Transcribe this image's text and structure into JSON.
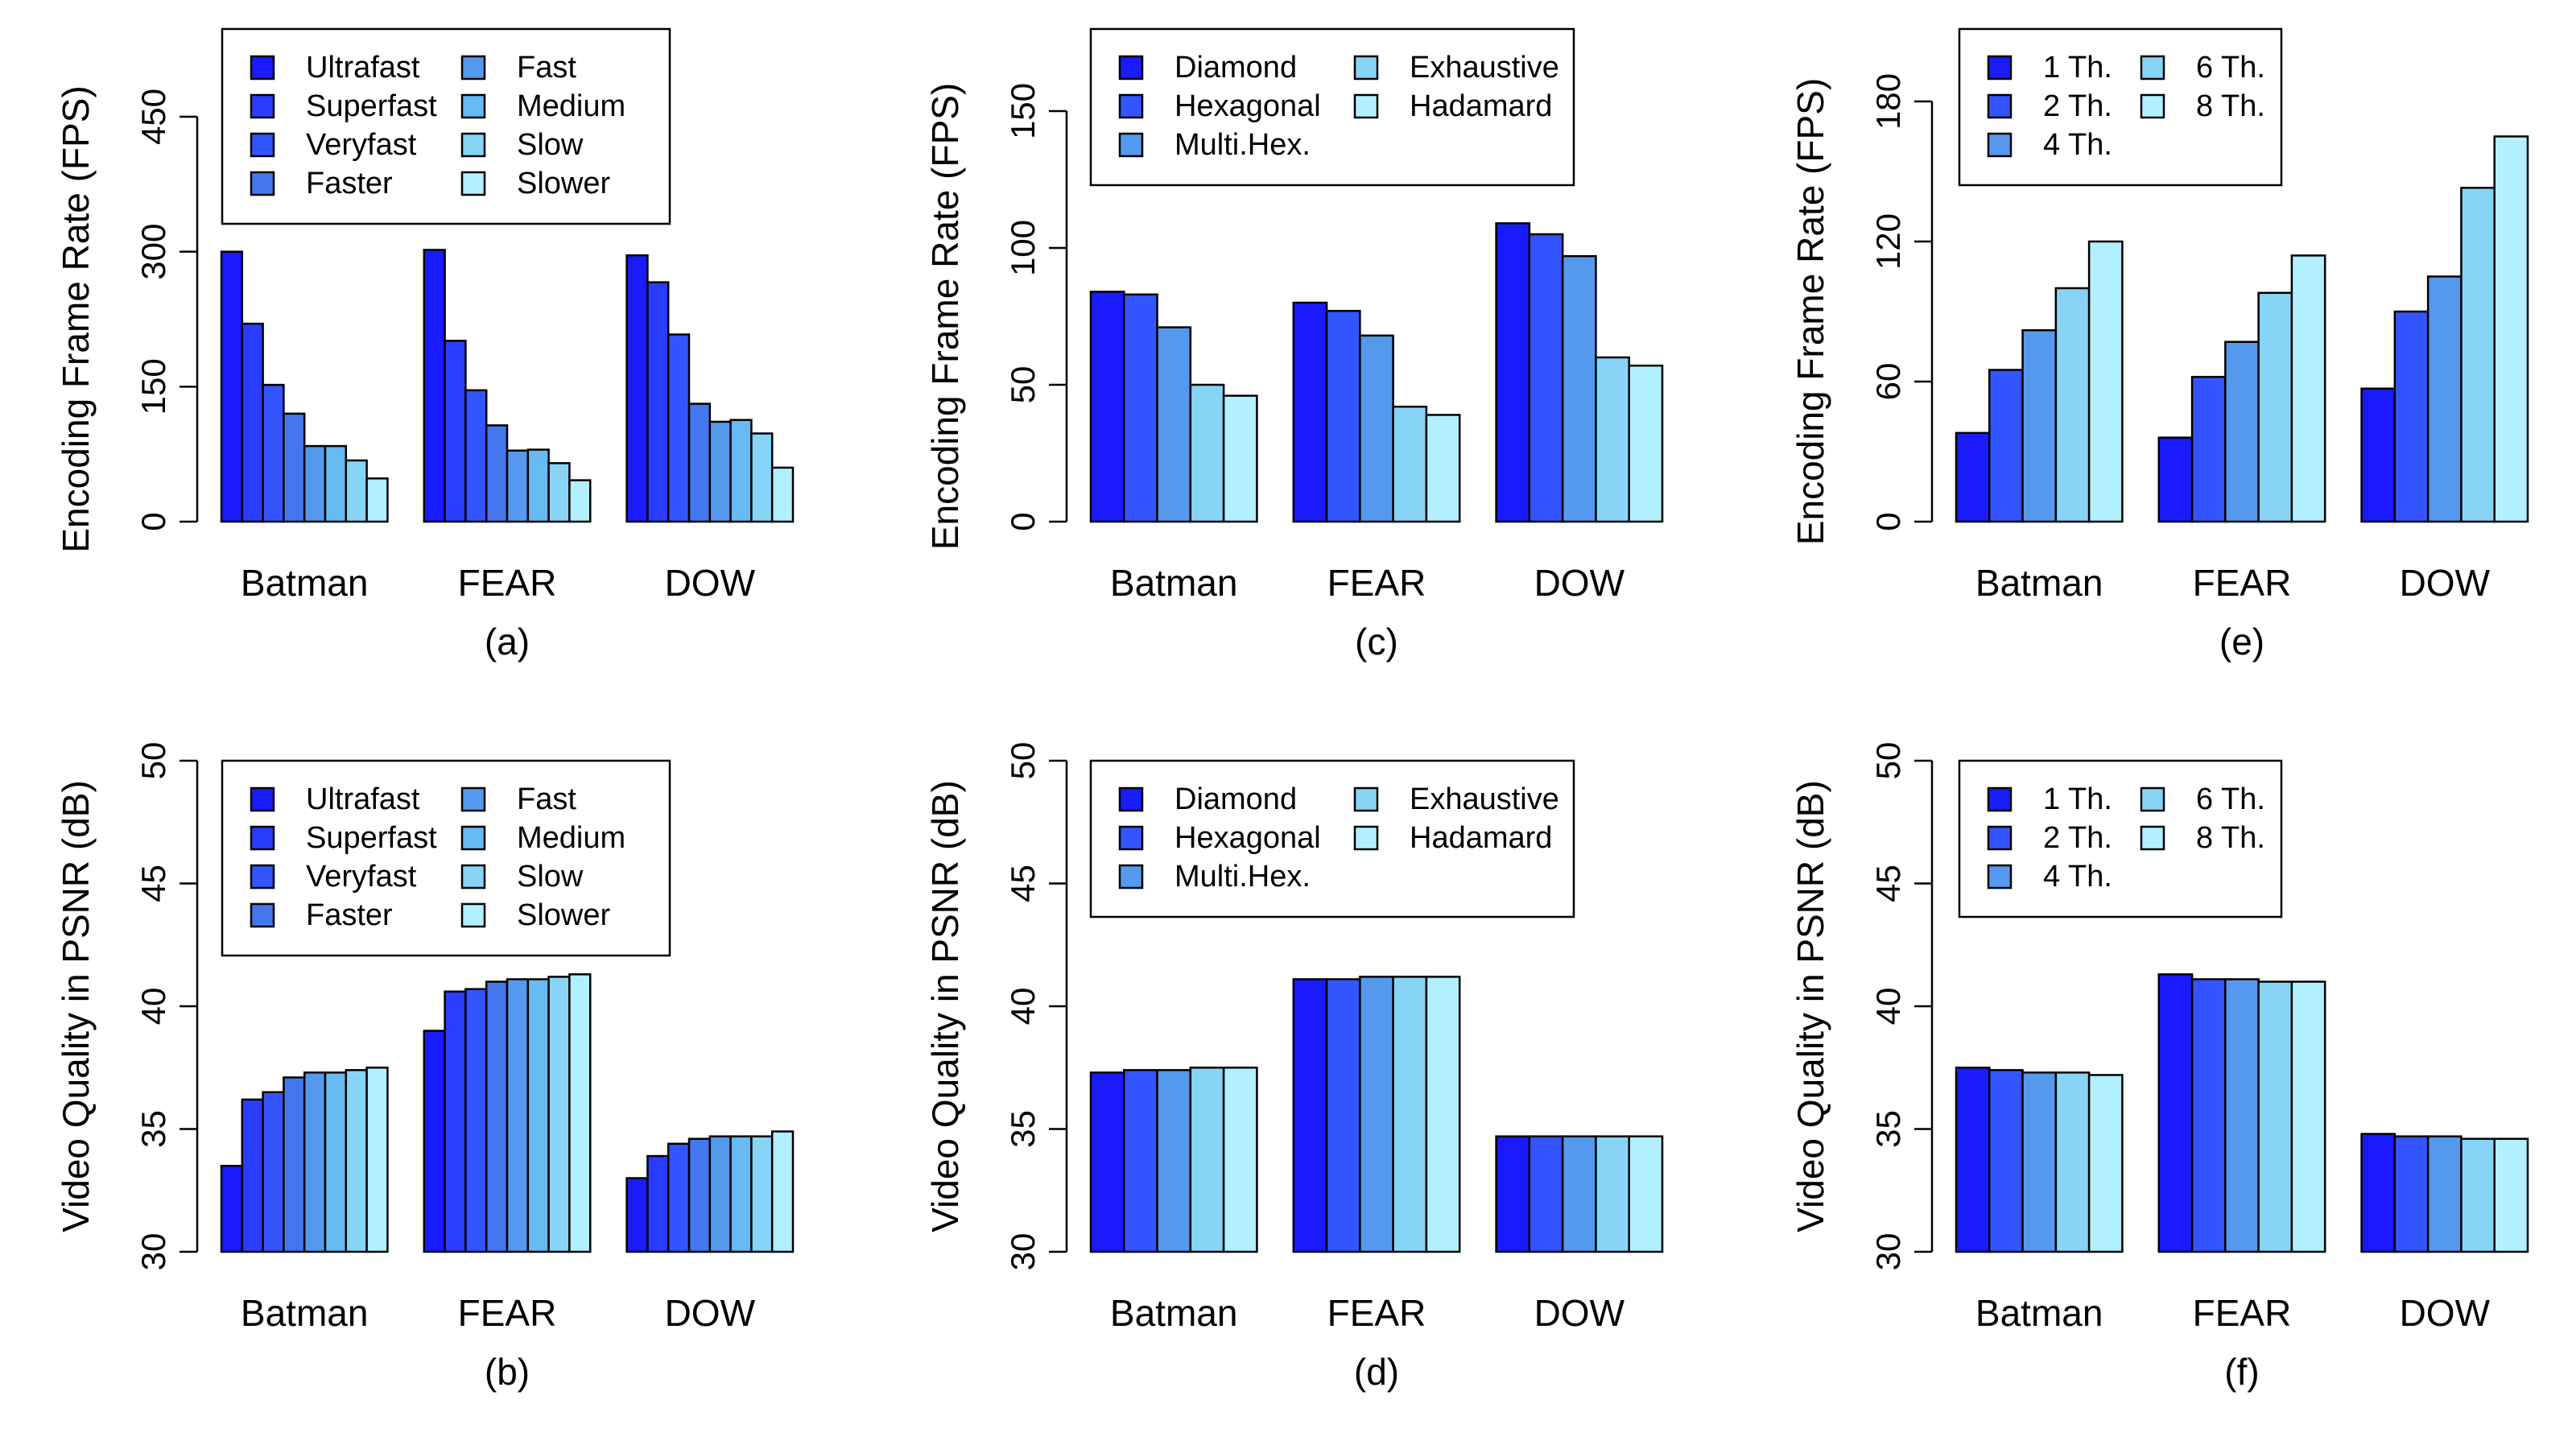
{
  "chart_data": [
    {
      "id": "a",
      "caption": "(a)",
      "type": "bar",
      "ylabel": "Encoding Frame Rate (FPS)",
      "ylim": [
        0,
        450
      ],
      "yticks": [
        "0",
        "150",
        "300",
        "450"
      ],
      "categories": [
        "Batman",
        "FEAR",
        "DOW"
      ],
      "legend_cols": 2,
      "series": [
        {
          "name": "Ultrafast",
          "color": "#1a1aff",
          "values": [
            300,
            302,
            296
          ]
        },
        {
          "name": "Superfast",
          "color": "#2a3cff",
          "values": [
            220,
            201,
            266
          ]
        },
        {
          "name": "Veryfast",
          "color": "#3355ff",
          "values": [
            152,
            146,
            208
          ]
        },
        {
          "name": "Faster",
          "color": "#4477ee",
          "values": [
            120,
            107,
            131
          ]
        },
        {
          "name": "Fast",
          "color": "#5599ee",
          "values": [
            84,
            79,
            111
          ]
        },
        {
          "name": "Medium",
          "color": "#66bbf2",
          "values": [
            84,
            80,
            113
          ]
        },
        {
          "name": "Slow",
          "color": "#88d4f7",
          "values": [
            68,
            65,
            98
          ]
        },
        {
          "name": "Slower",
          "color": "#b3f0ff",
          "values": [
            48,
            46,
            60
          ]
        }
      ]
    },
    {
      "id": "c",
      "caption": "(c)",
      "type": "bar",
      "ylabel": "Encoding Frame Rate (FPS)",
      "ylim": [
        0,
        150
      ],
      "yticks": [
        "0",
        "50",
        "100",
        "150"
      ],
      "categories": [
        "Batman",
        "FEAR",
        "DOW"
      ],
      "legend_cols": 2,
      "series": [
        {
          "name": "Diamond",
          "color": "#1a1aff",
          "values": [
            84,
            80,
            109
          ]
        },
        {
          "name": "Hexagonal",
          "color": "#3355ff",
          "values": [
            83,
            77,
            105
          ]
        },
        {
          "name": "Multi.Hex.",
          "color": "#5599ee",
          "values": [
            71,
            68,
            97
          ]
        },
        {
          "name": "Exhaustive",
          "color": "#88d4f7",
          "values": [
            50,
            42,
            60
          ]
        },
        {
          "name": "Hadamard",
          "color": "#b3f0ff",
          "values": [
            46,
            39,
            57
          ]
        }
      ]
    },
    {
      "id": "e",
      "caption": "(e)",
      "type": "bar",
      "ylabel": "Encoding Frame Rate (FPS)",
      "ylim": [
        0,
        180
      ],
      "yticks": [
        "0",
        "60",
        "120",
        "180"
      ],
      "categories": [
        "Batman",
        "FEAR",
        "DOW"
      ],
      "legend_cols": 2,
      "series": [
        {
          "name": "1 Th.",
          "color": "#1a1aff",
          "values": [
            38,
            36,
            57
          ]
        },
        {
          "name": "2 Th.",
          "color": "#3355ff",
          "values": [
            65,
            62,
            90
          ]
        },
        {
          "name": "4 Th.",
          "color": "#5599ee",
          "values": [
            82,
            77,
            105
          ]
        },
        {
          "name": "6 Th.",
          "color": "#88d4f7",
          "values": [
            100,
            98,
            143
          ]
        },
        {
          "name": "8 Th.",
          "color": "#b3f0ff",
          "values": [
            120,
            114,
            165
          ]
        }
      ]
    },
    {
      "id": "b",
      "caption": "(b)",
      "type": "bar",
      "ylabel": "Video Quality in PSNR (dB)",
      "ylim": [
        30,
        50
      ],
      "yticks": [
        "30",
        "35",
        "40",
        "45",
        "50"
      ],
      "categories": [
        "Batman",
        "FEAR",
        "DOW"
      ],
      "legend_cols": 2,
      "series": [
        {
          "name": "Ultrafast",
          "color": "#1a1aff",
          "values": [
            33.5,
            39.0,
            33.0
          ]
        },
        {
          "name": "Superfast",
          "color": "#2a3cff",
          "values": [
            36.2,
            40.6,
            33.9
          ]
        },
        {
          "name": "Veryfast",
          "color": "#3355ff",
          "values": [
            36.5,
            40.7,
            34.4
          ]
        },
        {
          "name": "Faster",
          "color": "#4477ee",
          "values": [
            37.1,
            41.0,
            34.6
          ]
        },
        {
          "name": "Fast",
          "color": "#5599ee",
          "values": [
            37.3,
            41.1,
            34.7
          ]
        },
        {
          "name": "Medium",
          "color": "#66bbf2",
          "values": [
            37.3,
            41.1,
            34.7
          ]
        },
        {
          "name": "Slow",
          "color": "#88d4f7",
          "values": [
            37.4,
            41.2,
            34.7
          ]
        },
        {
          "name": "Slower",
          "color": "#b3f0ff",
          "values": [
            37.5,
            41.3,
            34.9
          ]
        }
      ]
    },
    {
      "id": "d",
      "caption": "(d)",
      "type": "bar",
      "ylabel": "Video Quality in PSNR (dB)",
      "ylim": [
        30,
        50
      ],
      "yticks": [
        "30",
        "35",
        "40",
        "45",
        "50"
      ],
      "categories": [
        "Batman",
        "FEAR",
        "DOW"
      ],
      "legend_cols": 2,
      "series": [
        {
          "name": "Diamond",
          "color": "#1a1aff",
          "values": [
            37.3,
            41.1,
            34.7
          ]
        },
        {
          "name": "Hexagonal",
          "color": "#3355ff",
          "values": [
            37.4,
            41.1,
            34.7
          ]
        },
        {
          "name": "Multi.Hex.",
          "color": "#5599ee",
          "values": [
            37.4,
            41.2,
            34.7
          ]
        },
        {
          "name": "Exhaustive",
          "color": "#88d4f7",
          "values": [
            37.5,
            41.2,
            34.7
          ]
        },
        {
          "name": "Hadamard",
          "color": "#b3f0ff",
          "values": [
            37.5,
            41.2,
            34.7
          ]
        }
      ]
    },
    {
      "id": "f",
      "caption": "(f)",
      "type": "bar",
      "ylabel": "Video Quality in PSNR (dB)",
      "ylim": [
        30,
        50
      ],
      "yticks": [
        "30",
        "35",
        "40",
        "45",
        "50"
      ],
      "categories": [
        "Batman",
        "FEAR",
        "DOW"
      ],
      "legend_cols": 2,
      "series": [
        {
          "name": "1 Th.",
          "color": "#1a1aff",
          "values": [
            37.5,
            41.3,
            34.8
          ]
        },
        {
          "name": "2 Th.",
          "color": "#3355ff",
          "values": [
            37.4,
            41.1,
            34.7
          ]
        },
        {
          "name": "4 Th.",
          "color": "#5599ee",
          "values": [
            37.3,
            41.1,
            34.7
          ]
        },
        {
          "name": "6 Th.",
          "color": "#88d4f7",
          "values": [
            37.3,
            41.0,
            34.6
          ]
        },
        {
          "name": "8 Th.",
          "color": "#b3f0ff",
          "values": [
            37.2,
            41.0,
            34.6
          ]
        }
      ]
    }
  ]
}
